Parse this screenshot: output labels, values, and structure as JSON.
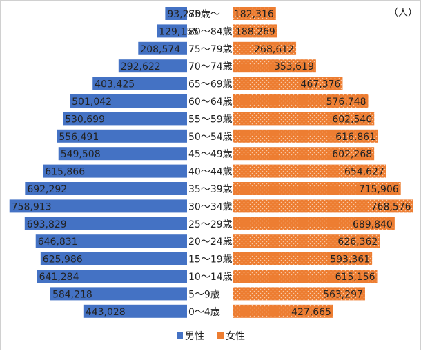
{
  "unit_label": "（人）",
  "chart_data": {
    "type": "bar",
    "title": "",
    "xlabel": "",
    "ylabel": "",
    "grid": false,
    "legend_position": "bottom",
    "categories": [
      "85歳〜",
      "80〜84歳",
      "75〜79歳",
      "70〜74歳",
      "65〜69歳",
      "60〜64歳",
      "55〜59歳",
      "50〜54歳",
      "45〜49歳",
      "40〜44歳",
      "35〜39歳",
      "30〜34歳",
      "25〜29歳",
      "20〜24歳",
      "15〜19歳",
      "10〜14歳",
      "5〜9歳",
      "0〜4歳"
    ],
    "series": [
      {
        "name": "男性",
        "color": "#4472C4",
        "values": [
          93270,
          129155,
          208574,
          292622,
          403425,
          501042,
          530699,
          556491,
          549508,
          615866,
          692292,
          758913,
          693829,
          646831,
          625986,
          641284,
          584218,
          443028
        ],
        "labels": [
          "93,270",
          "129,155",
          "208,574",
          "292,622",
          "403,425",
          "501,042",
          "530,699",
          "556,491",
          "549,508",
          "615,866",
          "692,292",
          "758,913",
          "693,829",
          "646,831",
          "625,986",
          "641,284",
          "584,218",
          "443,028"
        ]
      },
      {
        "name": "女性",
        "color": "#ED7D31",
        "values": [
          182316,
          188269,
          268612,
          353619,
          467376,
          576748,
          602540,
          616861,
          602268,
          654627,
          715906,
          768576,
          689840,
          626362,
          593361,
          615156,
          563297,
          427665
        ],
        "labels": [
          "182,316",
          "188,269",
          "268,612",
          "353,619",
          "467,376",
          "576,748",
          "602,540",
          "616,861",
          "602,268",
          "654,627",
          "715,906",
          "768,576",
          "689,840",
          "626,362",
          "593,361",
          "615,156",
          "563,297",
          "427,665"
        ]
      }
    ]
  }
}
